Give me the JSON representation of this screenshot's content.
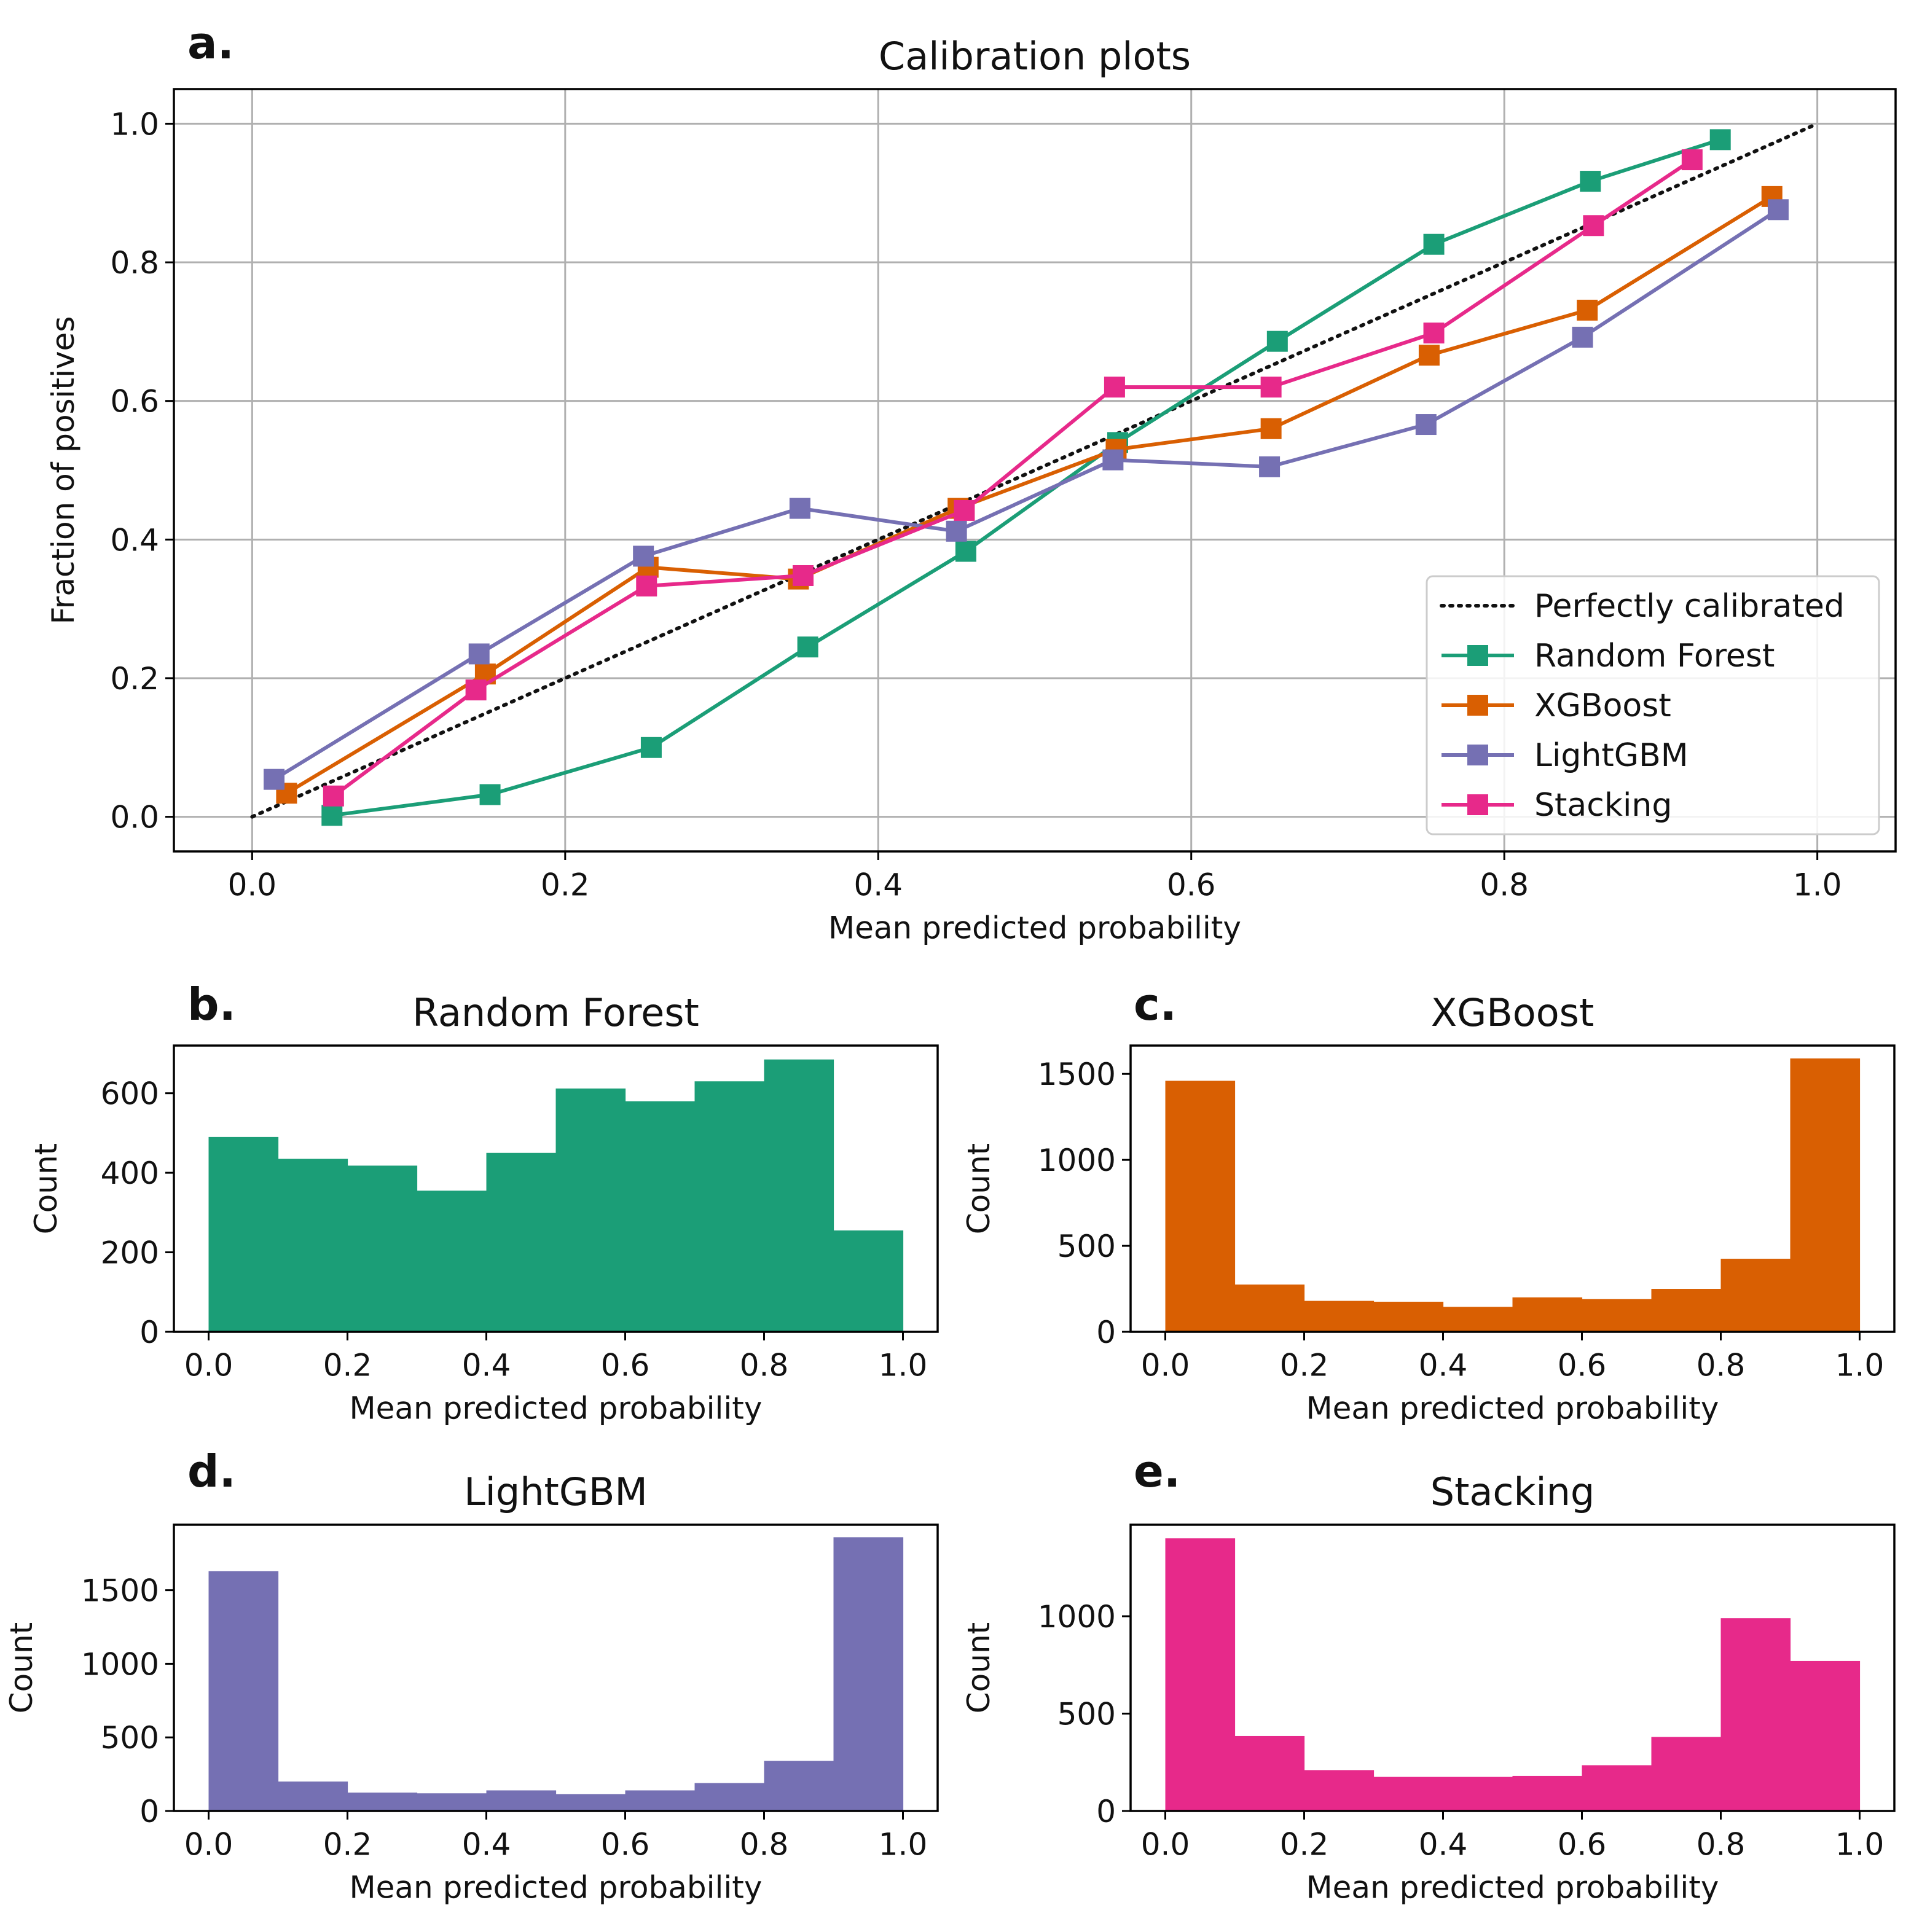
{
  "figure": {
    "panels": [
      {
        "letter": "a."
      },
      {
        "letter": "b."
      },
      {
        "letter": "c."
      },
      {
        "letter": "d."
      },
      {
        "letter": "e."
      }
    ]
  },
  "colors": {
    "perfect": "#111111",
    "random_forest": "#1b9e77",
    "xgboost": "#d95f02",
    "lightgbm": "#7570b3",
    "stacking": "#e7298a",
    "grid": "#b0b0b0",
    "axis": "#000000"
  },
  "chart_data": [
    {
      "type": "line",
      "title": "Calibration plots",
      "xlabel": "Mean predicted probability",
      "ylabel": "Fraction of positives",
      "xlim": [
        -0.05,
        1.05
      ],
      "ylim": [
        -0.05,
        1.05
      ],
      "xticks": [
        "0.0",
        "0.2",
        "0.4",
        "0.6",
        "0.8",
        "1.0"
      ],
      "yticks": [
        "0.0",
        "0.2",
        "0.4",
        "0.6",
        "0.8",
        "1.0"
      ],
      "grid": true,
      "legend_position": "bottom-right",
      "reference": {
        "name": "Perfectly calibrated",
        "x": [
          0,
          1
        ],
        "y": [
          0,
          1
        ],
        "style": "dotted"
      },
      "series": [
        {
          "name": "Random Forest",
          "color_key": "random_forest",
          "x": [
            0.051,
            0.152,
            0.255,
            0.355,
            0.456,
            0.553,
            0.655,
            0.755,
            0.855,
            0.938
          ],
          "y": [
            0.002,
            0.032,
            0.1,
            0.245,
            0.383,
            0.54,
            0.686,
            0.826,
            0.917,
            0.977
          ]
        },
        {
          "name": "XGBoost",
          "color_key": "xgboost",
          "x": [
            0.022,
            0.149,
            0.253,
            0.349,
            0.451,
            0.552,
            0.651,
            0.752,
            0.853,
            0.971
          ],
          "y": [
            0.034,
            0.206,
            0.36,
            0.343,
            0.445,
            0.53,
            0.56,
            0.666,
            0.731,
            0.895
          ]
        },
        {
          "name": "LightGBM",
          "color_key": "lightgbm",
          "x": [
            0.014,
            0.145,
            0.25,
            0.35,
            0.45,
            0.55,
            0.65,
            0.75,
            0.85,
            0.975
          ],
          "y": [
            0.054,
            0.235,
            0.376,
            0.445,
            0.412,
            0.515,
            0.505,
            0.566,
            0.692,
            0.876
          ]
        },
        {
          "name": "Stacking",
          "color_key": "stacking",
          "x": [
            0.052,
            0.143,
            0.252,
            0.352,
            0.455,
            0.551,
            0.651,
            0.755,
            0.857,
            0.92
          ],
          "y": [
            0.03,
            0.183,
            0.333,
            0.348,
            0.442,
            0.62,
            0.62,
            0.698,
            0.853,
            0.948
          ]
        }
      ]
    },
    {
      "type": "bar",
      "title": "Random Forest",
      "color_key": "random_forest",
      "xlabel": "Mean predicted probability",
      "ylabel": "Count",
      "bin_edges": [
        0.0,
        0.1,
        0.2,
        0.3,
        0.4,
        0.5,
        0.6,
        0.7,
        0.8,
        0.9,
        1.0
      ],
      "values": [
        490,
        435,
        418,
        355,
        450,
        612,
        580,
        630,
        685,
        255
      ],
      "xlim": [
        -0.05,
        1.05
      ],
      "ylim": [
        0,
        720
      ],
      "xticks": [
        "0.0",
        "0.2",
        "0.4",
        "0.6",
        "0.8",
        "1.0"
      ],
      "yticks": [
        "0",
        "200",
        "400",
        "600"
      ]
    },
    {
      "type": "bar",
      "title": "XGBoost",
      "color_key": "xgboost",
      "xlabel": "Mean predicted probability",
      "ylabel": "Count",
      "bin_edges": [
        0.0,
        0.1,
        0.2,
        0.3,
        0.4,
        0.5,
        0.6,
        0.7,
        0.8,
        0.9,
        1.0
      ],
      "values": [
        1460,
        275,
        180,
        175,
        145,
        200,
        190,
        250,
        425,
        1590
      ],
      "xlim": [
        -0.05,
        1.05
      ],
      "ylim": [
        0,
        1665
      ],
      "xticks": [
        "0.0",
        "0.2",
        "0.4",
        "0.6",
        "0.8",
        "1.0"
      ],
      "yticks": [
        "0",
        "500",
        "1000",
        "1500"
      ]
    },
    {
      "type": "bar",
      "title": "LightGBM",
      "color_key": "lightgbm",
      "xlabel": "Mean predicted probability",
      "ylabel": "Count",
      "bin_edges": [
        0.0,
        0.1,
        0.2,
        0.3,
        0.4,
        0.5,
        0.6,
        0.7,
        0.8,
        0.9,
        1.0
      ],
      "values": [
        1630,
        200,
        125,
        120,
        140,
        115,
        140,
        190,
        340,
        1860
      ],
      "xlim": [
        -0.05,
        1.05
      ],
      "ylim": [
        0,
        1945
      ],
      "xticks": [
        "0.0",
        "0.2",
        "0.4",
        "0.6",
        "0.8",
        "1.0"
      ],
      "yticks": [
        "0",
        "500",
        "1000",
        "1500"
      ]
    },
    {
      "type": "bar",
      "title": "Stacking",
      "color_key": "stacking",
      "xlabel": "Mean predicted probability",
      "ylabel": "Count",
      "bin_edges": [
        0.0,
        0.1,
        0.2,
        0.3,
        0.4,
        0.5,
        0.6,
        0.7,
        0.8,
        0.9,
        1.0
      ],
      "values": [
        1400,
        385,
        210,
        175,
        175,
        180,
        235,
        380,
        990,
        770
      ],
      "xlim": [
        -0.05,
        1.05
      ],
      "ylim": [
        0,
        1470
      ],
      "xticks": [
        "0.0",
        "0.2",
        "0.4",
        "0.6",
        "0.8",
        "1.0"
      ],
      "yticks": [
        "0",
        "500",
        "1000"
      ]
    }
  ]
}
